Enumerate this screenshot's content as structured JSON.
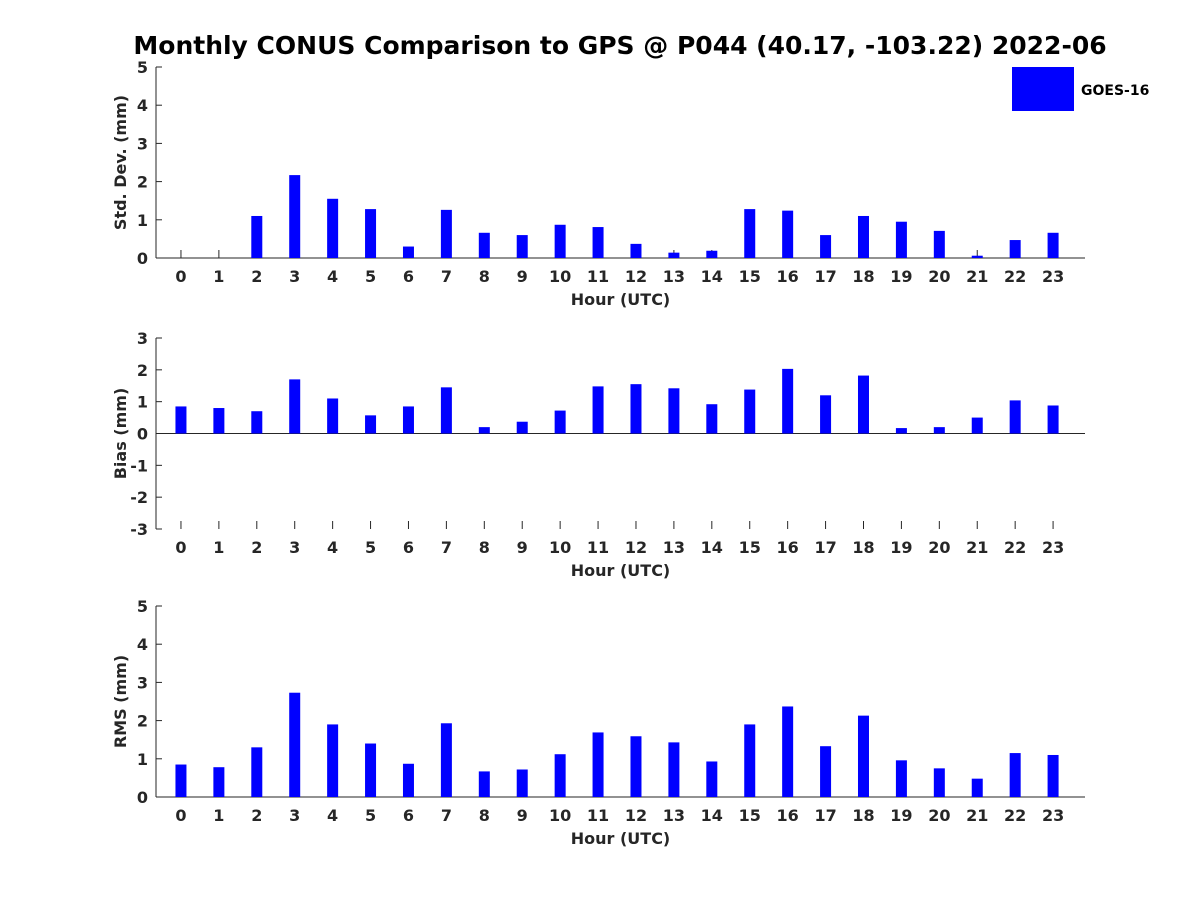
{
  "chart_data": {
    "title": "Monthly CONUS Comparison to GPS @ P044 (40.17, -103.22) 2022-06",
    "legend": {
      "label": "GOES-16",
      "color": "#0000ff",
      "placement": "top-right"
    },
    "bar_color": "#0000ff",
    "panels": [
      {
        "type": "bar",
        "ylabel": "Std. Dev. (mm)",
        "xlabel": "Hour (UTC)",
        "ylim": [
          0,
          5
        ],
        "yticks": [
          "0",
          "1",
          "2",
          "3",
          "4",
          "5"
        ],
        "categories": [
          "0",
          "1",
          "2",
          "3",
          "4",
          "5",
          "6",
          "7",
          "8",
          "9",
          "10",
          "11",
          "12",
          "13",
          "14",
          "15",
          "16",
          "17",
          "18",
          "19",
          "20",
          "21",
          "22",
          "23"
        ],
        "values": [
          0,
          0,
          1.1,
          2.17,
          1.55,
          1.28,
          0.3,
          1.26,
          0.66,
          0.6,
          0.87,
          0.81,
          0.37,
          0.14,
          0.19,
          1.28,
          1.24,
          0.6,
          1.1,
          0.95,
          0.71,
          0.06,
          0.47,
          0.66
        ]
      },
      {
        "type": "bar",
        "ylabel": "Bias (mm)",
        "xlabel": "Hour (UTC)",
        "ylim": [
          -3,
          3
        ],
        "yticks": [
          "-3",
          "-2",
          "-1",
          "0",
          "1",
          "2",
          "3"
        ],
        "categories": [
          "0",
          "1",
          "2",
          "3",
          "4",
          "5",
          "6",
          "7",
          "8",
          "9",
          "10",
          "11",
          "12",
          "13",
          "14",
          "15",
          "16",
          "17",
          "18",
          "19",
          "20",
          "21",
          "22",
          "23"
        ],
        "values": [
          0.85,
          0.8,
          0.7,
          1.7,
          1.1,
          0.57,
          0.85,
          1.45,
          0.2,
          0.37,
          0.72,
          1.48,
          1.55,
          1.42,
          0.92,
          1.38,
          2.03,
          1.2,
          1.82,
          0.17,
          0.2,
          0.5,
          1.04,
          0.88
        ]
      },
      {
        "type": "bar",
        "ylabel": "RMS (mm)",
        "xlabel": "Hour (UTC)",
        "ylim": [
          0,
          5
        ],
        "yticks": [
          "0",
          "1",
          "2",
          "3",
          "4",
          "5"
        ],
        "categories": [
          "0",
          "1",
          "2",
          "3",
          "4",
          "5",
          "6",
          "7",
          "8",
          "9",
          "10",
          "11",
          "12",
          "13",
          "14",
          "15",
          "16",
          "17",
          "18",
          "19",
          "20",
          "21",
          "22",
          "23"
        ],
        "values": [
          0.85,
          0.78,
          1.3,
          2.73,
          1.9,
          1.4,
          0.87,
          1.93,
          0.67,
          0.72,
          1.12,
          1.69,
          1.59,
          1.43,
          0.93,
          1.9,
          2.37,
          1.33,
          2.13,
          0.96,
          0.75,
          0.48,
          1.15,
          1.1
        ]
      }
    ]
  }
}
